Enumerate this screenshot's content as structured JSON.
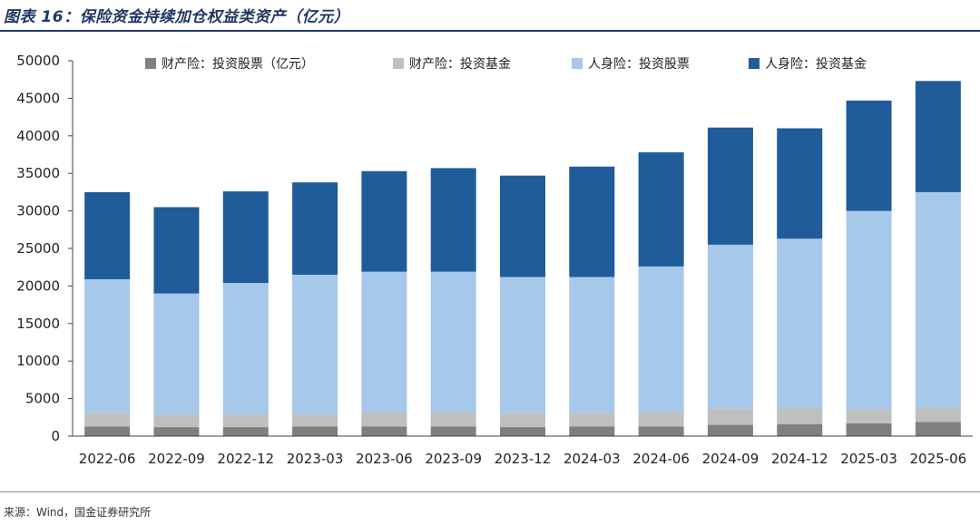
{
  "header": {
    "title": "图表 16：保险资金持续加仓权益类资产（亿元）"
  },
  "footer": {
    "source": "来源：Wind，国金证券研究所"
  },
  "colors": {
    "series": [
      "#7f7f7f",
      "#bfbfbf",
      "#a6c8eb",
      "#1f5c99"
    ],
    "axis": "#404040",
    "rule": "#1f3864"
  },
  "chart_data": {
    "type": "bar",
    "stacked": true,
    "title": "保险资金持续加仓权益类资产（亿元）",
    "xlabel": "",
    "ylabel": "",
    "ylim": [
      0,
      50000
    ],
    "yticks": [
      0,
      5000,
      10000,
      15000,
      20000,
      25000,
      30000,
      35000,
      40000,
      45000,
      50000
    ],
    "ytick_labels": [
      "0",
      "5000",
      "10000",
      "15000",
      "20000",
      "25000",
      "30000",
      "35000",
      "40000",
      "45000",
      "50000"
    ],
    "categories": [
      "2022-06",
      "2022-09",
      "2022-12",
      "2023-03",
      "2023-06",
      "2023-09",
      "2023-12",
      "2024-03",
      "2024-06",
      "2024-09",
      "2024-12",
      "2025-03",
      "2025-06"
    ],
    "legend_position": "top",
    "series": [
      {
        "name": "财产险：投资股票（亿元）",
        "values": [
          1300,
          1200,
          1200,
          1300,
          1300,
          1300,
          1200,
          1300,
          1300,
          1500,
          1600,
          1700,
          1900
        ]
      },
      {
        "name": "财产险：投资基金",
        "values": [
          1800,
          1700,
          1700,
          1600,
          1900,
          1900,
          1900,
          1800,
          1900,
          2200,
          2200,
          1900,
          1900
        ]
      },
      {
        "name": "人身险：投资股票",
        "values": [
          17800,
          16100,
          17500,
          18600,
          18700,
          18700,
          18100,
          18100,
          19400,
          21800,
          22500,
          26400,
          28700
        ]
      },
      {
        "name": "人身险：投资基金",
        "values": [
          11600,
          11500,
          12200,
          12300,
          13400,
          13800,
          13500,
          14700,
          15200,
          15600,
          14700,
          14700,
          14800
        ]
      }
    ]
  }
}
